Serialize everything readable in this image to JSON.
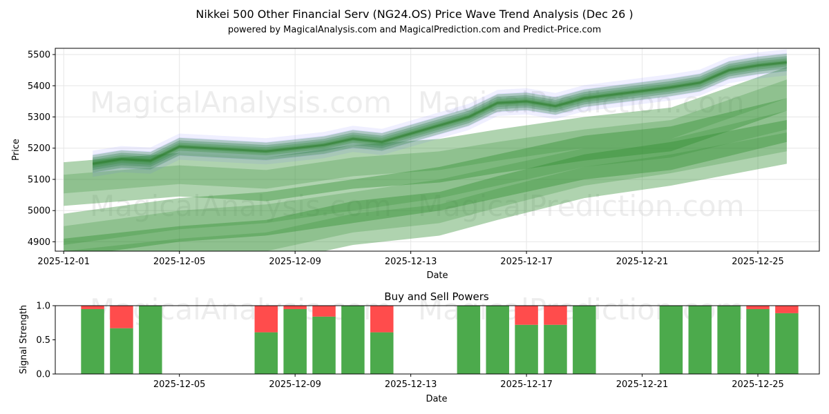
{
  "chart_data": [
    {
      "type": "line",
      "title": "Nikkei 500 Other Financial Serv (NG24.OS) Price Wave Trend Analysis (Dec 26 )",
      "subtitle": "powered by MagicalAnalysis.com and MagicalPrediction.com and Predict-Price.com",
      "xlabel": "Date",
      "ylabel": "Price",
      "xlim": [
        "2025-11-30T17:00",
        "2025-12-27T03:00"
      ],
      "ylim": [
        4870,
        5520
      ],
      "x_ticks": [
        "2025-12-01",
        "2025-12-05",
        "2025-12-09",
        "2025-12-13",
        "2025-12-17",
        "2025-12-21",
        "2025-12-25"
      ],
      "y_ticks": [
        4900,
        5000,
        5100,
        5200,
        5300,
        5400,
        5500
      ],
      "grid": true,
      "series": [
        {
          "name": "price-wave-center",
          "x": [
            "2025-12-02",
            "2025-12-03",
            "2025-12-04",
            "2025-12-05",
            "2025-12-08",
            "2025-12-09",
            "2025-12-10",
            "2025-12-11",
            "2025-12-12",
            "2025-12-15",
            "2025-12-16",
            "2025-12-17",
            "2025-12-18",
            "2025-12-19",
            "2025-12-22",
            "2025-12-23",
            "2025-12-24",
            "2025-12-25",
            "2025-12-26"
          ],
          "values": [
            5150,
            5165,
            5160,
            5205,
            5190,
            5200,
            5210,
            5230,
            5220,
            5300,
            5345,
            5350,
            5335,
            5360,
            5395,
            5410,
            5450,
            5465,
            5475
          ]
        },
        {
          "name": "forecast-band-1",
          "x": [
            "2025-12-01",
            "2025-12-05",
            "2025-12-08",
            "2025-12-11",
            "2025-12-14",
            "2025-12-16",
            "2025-12-19",
            "2025-12-22",
            "2025-12-26"
          ],
          "values": [
            5085,
            5115,
            5100,
            5140,
            5160,
            5190,
            5230,
            5260,
            5390
          ]
        },
        {
          "name": "forecast-band-2",
          "x": [
            "2025-12-01",
            "2025-12-05",
            "2025-12-08",
            "2025-12-11",
            "2025-12-14",
            "2025-12-16",
            "2025-12-19",
            "2025-12-22",
            "2025-12-26"
          ],
          "values": [
            4920,
            4970,
            4990,
            5030,
            5070,
            5110,
            5170,
            5200,
            5290
          ]
        },
        {
          "name": "forecast-band-3",
          "x": [
            "2025-12-01",
            "2025-12-05",
            "2025-12-08",
            "2025-12-11",
            "2025-12-14",
            "2025-12-16",
            "2025-12-19",
            "2025-12-22",
            "2025-12-26"
          ],
          "values": [
            4840,
            4880,
            4900,
            4960,
            4990,
            5040,
            5110,
            5150,
            5220
          ]
        }
      ]
    },
    {
      "type": "bar",
      "title": "Buy and Sell Powers",
      "xlabel": "Date",
      "ylabel": "Signal Strength",
      "xlim": [
        "2025-11-30T17:00",
        "2025-12-27T03:00"
      ],
      "ylim": [
        0,
        1
      ],
      "x_ticks": [
        "2025-12-05",
        "2025-12-09",
        "2025-12-13",
        "2025-12-17",
        "2025-12-21",
        "2025-12-25"
      ],
      "y_ticks": [
        "0.0",
        "0.5",
        "1.0"
      ],
      "categories": [
        "2025-12-02",
        "2025-12-03",
        "2025-12-04",
        "2025-12-08",
        "2025-12-09",
        "2025-12-10",
        "2025-12-11",
        "2025-12-12",
        "2025-12-15",
        "2025-12-16",
        "2025-12-17",
        "2025-12-18",
        "2025-12-19",
        "2025-12-22",
        "2025-12-23",
        "2025-12-24",
        "2025-12-25",
        "2025-12-26"
      ],
      "series": [
        {
          "name": "Buy",
          "color": "#4caa4c",
          "values": [
            0.95,
            0.67,
            1.0,
            0.61,
            0.95,
            0.84,
            1.0,
            0.61,
            1.0,
            1.0,
            0.72,
            0.72,
            1.0,
            1.0,
            1.0,
            1.0,
            0.95,
            0.89
          ]
        },
        {
          "name": "Sell",
          "color": "#ff4c4c",
          "values": [
            0.05,
            0.33,
            0.0,
            0.39,
            0.05,
            0.16,
            0.0,
            0.39,
            0.0,
            0.0,
            0.28,
            0.28,
            0.0,
            0.0,
            0.0,
            0.0,
            0.05,
            0.11
          ]
        }
      ]
    }
  ],
  "watermarks": [
    "MagicalAnalysis.com",
    "MagicalPrediction.com"
  ],
  "colors": {
    "green": "#2e8b2e",
    "blue": "#6666ff",
    "buy": "#4caa4c",
    "sell": "#ff4c4c",
    "grid": "#e6e6e6"
  }
}
